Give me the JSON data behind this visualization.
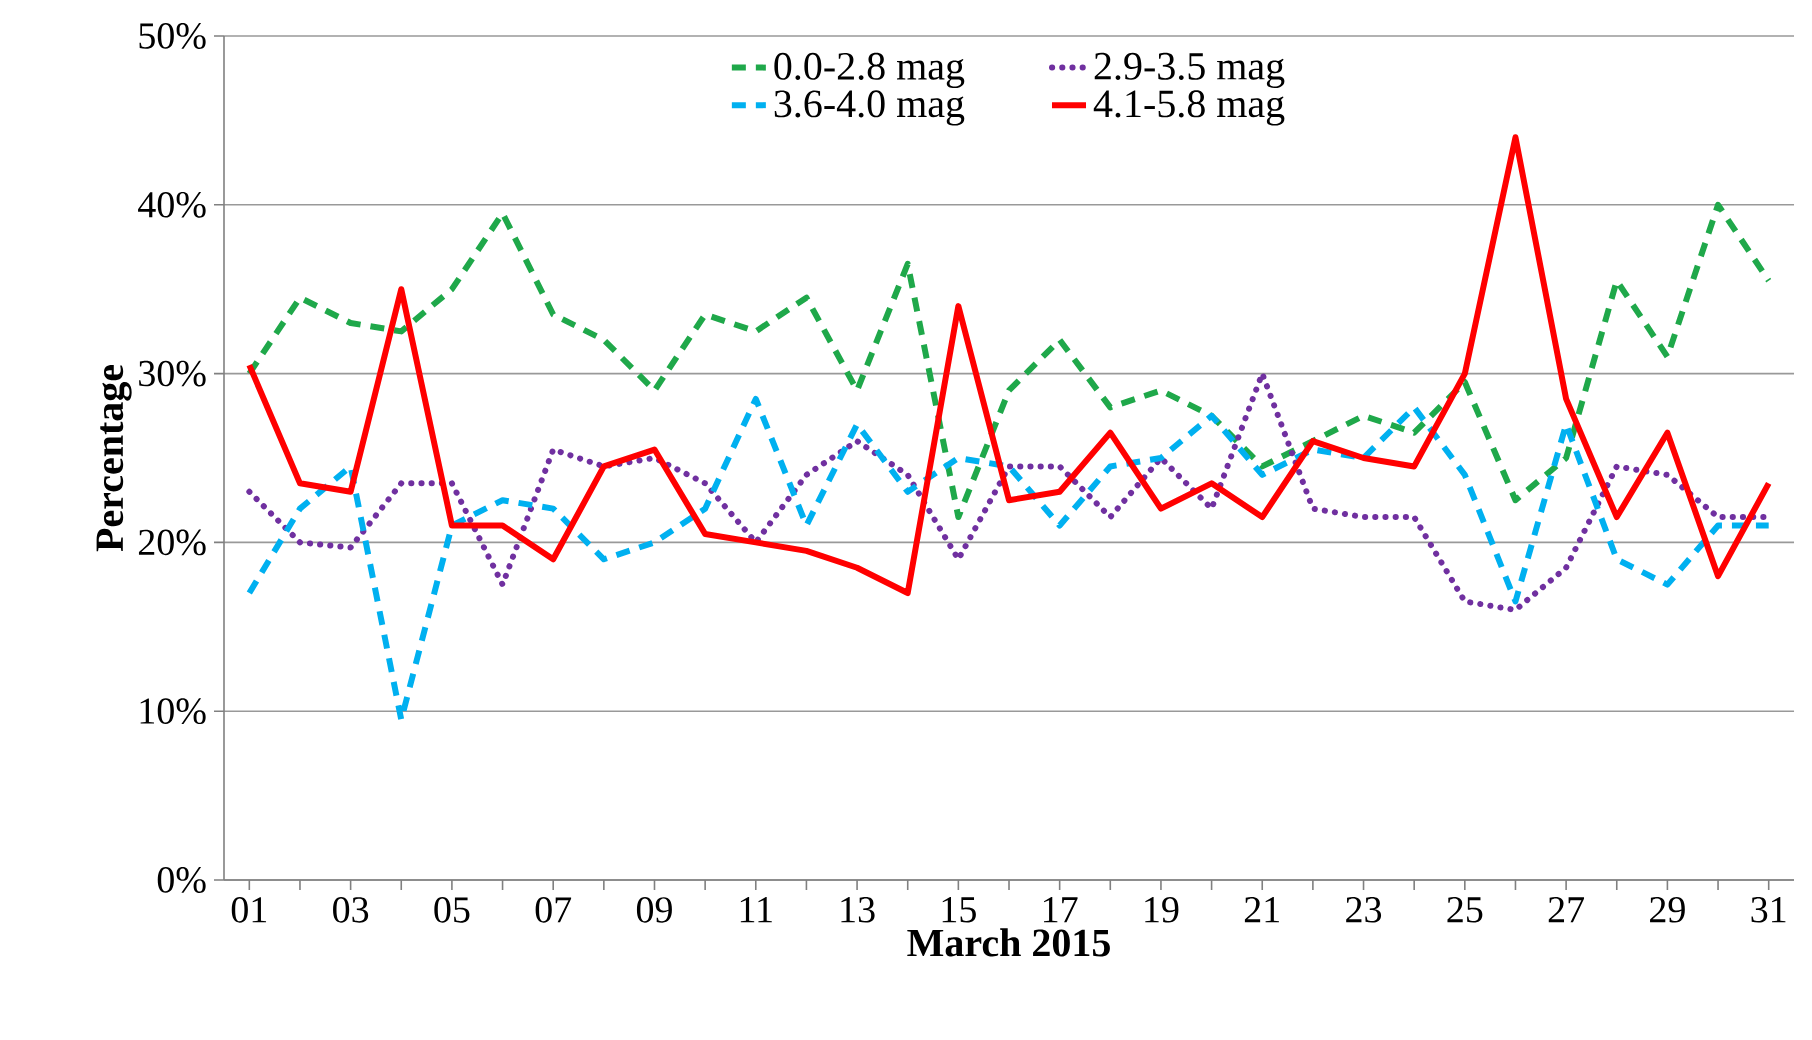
{
  "chart_data": {
    "type": "line",
    "xlabel": "March 2015",
    "ylabel": "Percentage",
    "categories": [
      "01",
      null,
      "03",
      null,
      "05",
      null,
      "07",
      null,
      "09",
      null,
      "11",
      null,
      "13",
      null,
      "15",
      null,
      "17",
      null,
      "19",
      null,
      "21",
      null,
      "23",
      null,
      "25",
      null,
      "27",
      null,
      "29",
      null,
      "31"
    ],
    "ylim": [
      0,
      50
    ],
    "yticks": [
      {
        "value": 0,
        "label": "0%"
      },
      {
        "value": 10,
        "label": "10%"
      },
      {
        "value": 20,
        "label": "20%"
      },
      {
        "value": 30,
        "label": "30%"
      },
      {
        "value": 40,
        "label": "40%"
      },
      {
        "value": 50,
        "label": "50%"
      }
    ],
    "grid": "y",
    "legend": "top",
    "marker": "none",
    "series": [
      {
        "name": "0.0-2.8 mag",
        "color": "#1fa84a",
        "line_style": "dashed",
        "values": [
          30,
          34.5,
          33,
          32.5,
          35,
          39.5,
          33.5,
          32,
          29,
          33.5,
          32.5,
          34.5,
          29,
          36.5,
          21.5,
          29,
          32,
          28,
          29,
          27.5,
          24.5,
          26,
          27.5,
          26.5,
          29.5,
          22.5,
          25,
          35.5,
          31,
          40,
          35.5
        ]
      },
      {
        "name": "2.9-3.5 mag",
        "color": "#7030a0",
        "line_style": "dotted",
        "values": [
          23,
          20,
          19.7,
          23.5,
          23.5,
          17.5,
          25.5,
          24.5,
          25,
          23.5,
          20,
          24,
          26,
          24,
          19,
          24.5,
          24.5,
          21.5,
          25,
          22,
          30,
          22,
          21.5,
          21.5,
          16.5,
          16,
          18.5,
          24.5,
          24,
          21.5,
          21.5
        ]
      },
      {
        "name": "3.6-4.0 mag",
        "color": "#00b0f0",
        "line_style": "dashed",
        "values": [
          17,
          22,
          24.5,
          9.5,
          21,
          22.5,
          22,
          19,
          20,
          22,
          28.5,
          21,
          27,
          23,
          25,
          24.5,
          21,
          24.5,
          25,
          27.5,
          24,
          25.5,
          25,
          28,
          24,
          16.5,
          27,
          19,
          17.5,
          21,
          21
        ]
      },
      {
        "name": "4.1-5.8 mag",
        "color": "#ff0000",
        "line_style": "solid",
        "values": [
          30.5,
          23.5,
          23,
          35,
          21,
          21,
          19,
          24.5,
          25.5,
          20.5,
          20,
          19.5,
          18.5,
          17,
          34,
          22.5,
          23,
          26.5,
          22,
          23.5,
          21.5,
          26,
          25,
          24.5,
          30,
          44,
          28.5,
          21.5,
          26.5,
          18,
          23.5
        ]
      }
    ]
  }
}
